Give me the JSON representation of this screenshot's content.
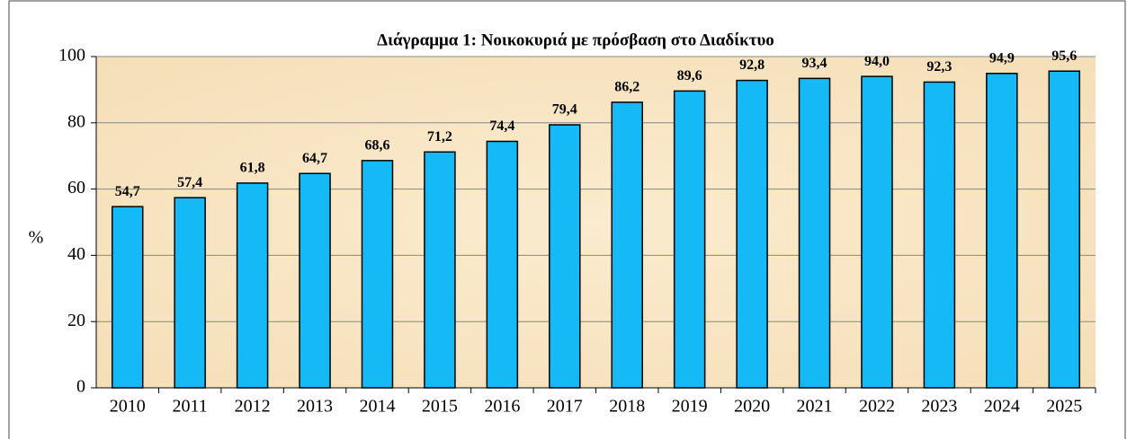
{
  "chart_data": {
    "type": "bar",
    "title": "Διάγραμμα 1: Νοικοκυριά με πρόσβαση στο Διαδίκτυο",
    "y_label": "%",
    "categories": [
      "2010",
      "2011",
      "2012",
      "2013",
      "2014",
      "2015",
      "2016",
      "2017",
      "2018",
      "2019",
      "2020",
      "2021",
      "2022",
      "2023",
      "2024",
      "2025"
    ],
    "values": [
      54.7,
      57.4,
      61.8,
      64.7,
      68.6,
      71.2,
      74.4,
      79.4,
      86.2,
      89.6,
      92.8,
      93.4,
      94.0,
      92.3,
      94.9,
      95.6
    ],
    "value_labels": [
      "54,7",
      "57,4",
      "61,8",
      "64,7",
      "68,6",
      "71,2",
      "74,4",
      "79,4",
      "86,2",
      "89,6",
      "92,8",
      "93,4",
      "94,0",
      "92,3",
      "94,9",
      "95,6"
    ],
    "color": "#14b9f5",
    "ylim": [
      0,
      100
    ],
    "yticks": [
      0,
      20,
      40,
      60,
      80,
      100
    ],
    "grid": true
  }
}
